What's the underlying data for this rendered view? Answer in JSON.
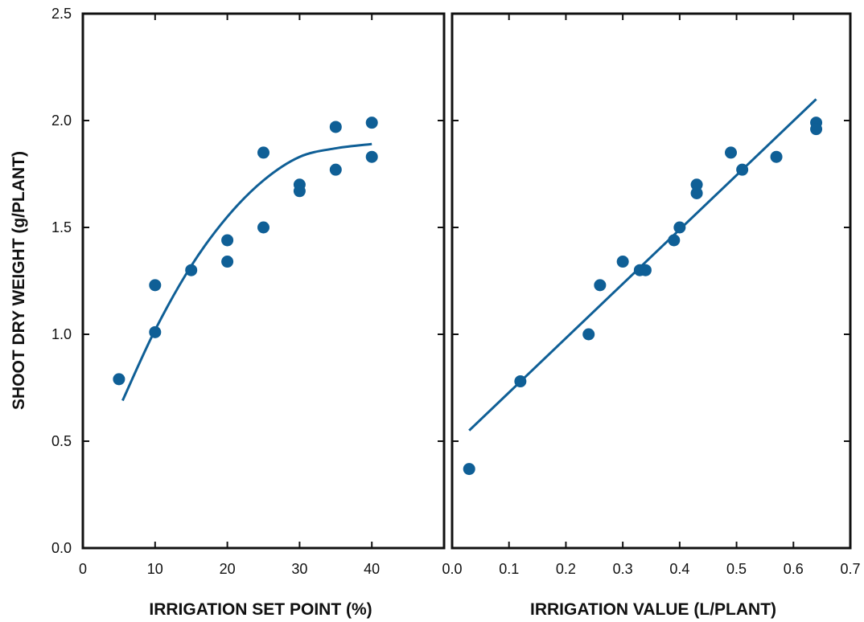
{
  "chart_data": [
    {
      "type": "scatter",
      "title": "",
      "xlabel": "IRRIGATION SET POINT (%)",
      "ylabel": "SHOOT DRY WEIGHT (g/PLANT)",
      "xlim": [
        0,
        50
      ],
      "ylim": [
        0,
        2.5
      ],
      "xticks": [
        "0",
        "10",
        "20",
        "30",
        "40"
      ],
      "yticks": [
        "0.0",
        "0.5",
        "1.0",
        "1.5",
        "2.0",
        "2.5"
      ],
      "grid": false,
      "colors": {
        "points": "#0f5f96",
        "fit": "#0f5f96",
        "axes": "#111111"
      },
      "points": [
        {
          "x": 5,
          "y": 0.79
        },
        {
          "x": 10,
          "y": 1.23
        },
        {
          "x": 10,
          "y": 1.01
        },
        {
          "x": 15,
          "y": 1.3
        },
        {
          "x": 20,
          "y": 1.44
        },
        {
          "x": 20,
          "y": 1.34
        },
        {
          "x": 25,
          "y": 1.85
        },
        {
          "x": 25,
          "y": 1.5
        },
        {
          "x": 30,
          "y": 1.7
        },
        {
          "x": 30,
          "y": 1.67
        },
        {
          "x": 35,
          "y": 1.97
        },
        {
          "x": 35,
          "y": 1.77
        },
        {
          "x": 40,
          "y": 1.99
        },
        {
          "x": 40,
          "y": 1.83
        }
      ],
      "fit": {
        "type": "quadratic",
        "x": [
          5.5,
          10,
          15,
          20,
          25,
          30,
          35,
          40
        ],
        "y": [
          0.69,
          1.02,
          1.32,
          1.55,
          1.72,
          1.83,
          1.87,
          1.89
        ]
      }
    },
    {
      "type": "scatter",
      "title": "",
      "xlabel": "IRRIGATION VALUE (L/PLANT)",
      "ylabel": "",
      "xlim": [
        0.0,
        0.7
      ],
      "ylim": [
        0,
        2.5
      ],
      "xticks": [
        "0.0",
        "0.1",
        "0.2",
        "0.3",
        "0.4",
        "0.5",
        "0.6",
        "0.7"
      ],
      "grid": false,
      "colors": {
        "points": "#0f5f96",
        "fit": "#0f5f96",
        "axes": "#111111"
      },
      "points": [
        {
          "x": 0.03,
          "y": 0.37
        },
        {
          "x": 0.12,
          "y": 0.78
        },
        {
          "x": 0.24,
          "y": 1.0
        },
        {
          "x": 0.26,
          "y": 1.23
        },
        {
          "x": 0.3,
          "y": 1.34
        },
        {
          "x": 0.33,
          "y": 1.3
        },
        {
          "x": 0.34,
          "y": 1.3
        },
        {
          "x": 0.39,
          "y": 1.44
        },
        {
          "x": 0.4,
          "y": 1.5
        },
        {
          "x": 0.43,
          "y": 1.66
        },
        {
          "x": 0.43,
          "y": 1.7
        },
        {
          "x": 0.49,
          "y": 1.85
        },
        {
          "x": 0.51,
          "y": 1.77
        },
        {
          "x": 0.57,
          "y": 1.83
        },
        {
          "x": 0.64,
          "y": 1.99
        },
        {
          "x": 0.64,
          "y": 1.96
        }
      ],
      "fit": {
        "type": "linear",
        "x": [
          0.03,
          0.64
        ],
        "y": [
          0.55,
          2.1
        ]
      }
    }
  ]
}
